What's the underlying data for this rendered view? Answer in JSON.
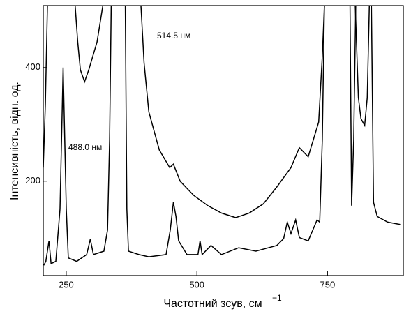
{
  "chart_data": {
    "type": "line",
    "x_label": "Частотний зсув, см",
    "x_label_exponent": "−1",
    "y_label": "Інтенсивність, відн. од.",
    "annotations": [
      "514.5 нм",
      "488.0 нм"
    ],
    "xlim": [
      206,
      895
    ],
    "ylim": [
      34,
      509
    ],
    "xticks": [
      250,
      500,
      750
    ],
    "yticks": [
      200,
      400
    ],
    "series": [
      {
        "color": "#000000",
        "x": [
          207,
          211,
          217,
          221,
          230,
          238,
          244,
          250,
          254,
          270,
          289,
          296,
          302,
          322,
          329,
          333,
          336,
          null,
          363,
          366,
          369,
          389,
          408,
          441,
          449,
          455,
          460,
          465,
          481,
          502,
          506,
          510,
          527,
          547,
          580,
          613,
          653,
          666,
          673,
          680,
          689,
          696,
          713,
          730,
          735,
          740,
          744,
          null,
          793,
          796,
          800,
          804,
          null,
          834,
          838,
          845,
          865,
          889
        ],
        "values": [
          52,
          59,
          95,
          55,
          59,
          151,
          400,
          151,
          65,
          59,
          71,
          98,
          71,
          77,
          114,
          273,
          509,
          null,
          509,
          151,
          77,
          71,
          67,
          71,
          114,
          163,
          138,
          95,
          71,
          71,
          95,
          71,
          87,
          71,
          83,
          77,
          87,
          99,
          128,
          108,
          132,
          101,
          95,
          132,
          128,
          273,
          509,
          null,
          509,
          157,
          273,
          509,
          null,
          509,
          163,
          138,
          128,
          124
        ]
      },
      {
        "color": "#000000",
        "x": [
          206,
          210,
          214,
          null,
          267,
          272,
          277,
          285,
          293,
          309,
          320,
          null,
          393,
          399,
          408,
          428,
          448,
          455,
          468,
          494,
          521,
          547,
          574,
          600,
          627,
          653,
          680,
          696,
          713,
          733,
          740,
          744,
          null,
          803,
          809,
          814,
          821,
          826,
          830
        ],
        "values": [
          224,
          335,
          509,
          null,
          509,
          445,
          396,
          375,
          396,
          445,
          509,
          null,
          509,
          408,
          322,
          255,
          224,
          230,
          200,
          175,
          157,
          144,
          136,
          144,
          160,
          190,
          224,
          259,
          243,
          304,
          420,
          509,
          null,
          509,
          347,
          310,
          298,
          347,
          509
        ]
      }
    ]
  }
}
